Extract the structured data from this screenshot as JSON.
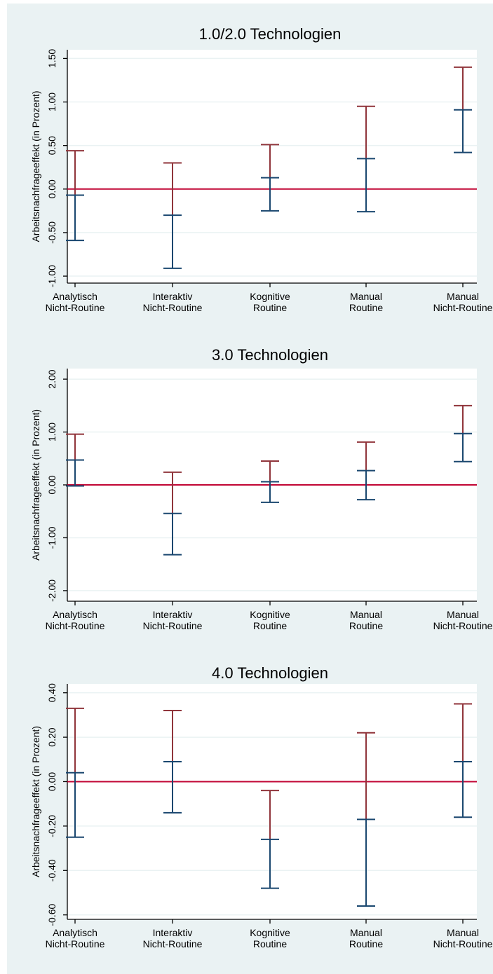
{
  "colors": {
    "background": "#eaf2f3",
    "plot_background": "#ffffff",
    "upper_bar": "#90353b",
    "lower_bar": "#1a476f",
    "reference_line": "#c10534",
    "grid": "#eaf2f3",
    "axis": "#000000"
  },
  "chart_data": [
    {
      "type": "errorbar",
      "title": "1.0/2.0 Technologien",
      "ylabel": "Arbeitsnachfrageeffekt (in Prozent)",
      "ylim": [
        -1.08,
        1.6
      ],
      "yticks": [
        1.5,
        1.0,
        0.5,
        0.0,
        -0.5,
        -1.0
      ],
      "ytick_labels": [
        "1.50",
        "1.00",
        "0.50",
        "0.00",
        "-0.50",
        "-1.00"
      ],
      "reference_line": 0,
      "categories": [
        [
          "Analytisch",
          "Nicht-Routine"
        ],
        [
          "Interaktiv",
          "Nicht-Routine"
        ],
        [
          "Kognitive",
          "Routine"
        ],
        [
          "Manual",
          "Routine"
        ],
        [
          "Manual",
          "Nicht-Routine"
        ]
      ],
      "points": [
        {
          "lower": -0.59,
          "estimate": -0.07,
          "upper": 0.44
        },
        {
          "lower": -0.91,
          "estimate": -0.3,
          "upper": 0.3
        },
        {
          "lower": -0.25,
          "estimate": 0.13,
          "upper": 0.51
        },
        {
          "lower": -0.26,
          "estimate": 0.35,
          "upper": 0.95
        },
        {
          "lower": 0.42,
          "estimate": 0.91,
          "upper": 1.4
        }
      ]
    },
    {
      "type": "errorbar",
      "title": "3.0 Technologien",
      "ylabel": "Arbeitsnachfrageeffekt (in Prozent)",
      "ylim": [
        -2.2,
        2.2
      ],
      "yticks": [
        2.0,
        1.0,
        0.0,
        -1.0,
        -2.0
      ],
      "ytick_labels": [
        "2.00",
        "1.00",
        "0.00",
        "-1.00",
        "-2.00"
      ],
      "reference_line": 0,
      "categories": [
        [
          "Analytisch",
          "Nicht-Routine"
        ],
        [
          "Interaktiv",
          "Nicht-Routine"
        ],
        [
          "Kognitive",
          "Routine"
        ],
        [
          "Manual",
          "Routine"
        ],
        [
          "Manual",
          "Nicht-Routine"
        ]
      ],
      "points": [
        {
          "lower": -0.02,
          "estimate": 0.47,
          "upper": 0.96
        },
        {
          "lower": -1.32,
          "estimate": -0.54,
          "upper": 0.24
        },
        {
          "lower": -0.33,
          "estimate": 0.06,
          "upper": 0.45
        },
        {
          "lower": -0.28,
          "estimate": 0.27,
          "upper": 0.81
        },
        {
          "lower": 0.44,
          "estimate": 0.97,
          "upper": 1.5
        }
      ]
    },
    {
      "type": "errorbar",
      "title": "4.0 Technologien",
      "ylabel": "Arbeitsnachfrageeffekt (in Prozent)",
      "ylim": [
        -0.62,
        0.44
      ],
      "yticks": [
        0.4,
        0.2,
        0.0,
        -0.2,
        -0.4,
        -0.6
      ],
      "ytick_labels": [
        "0.40",
        "0.20",
        "0.00",
        "-0.20",
        "-0.40",
        "-0.60"
      ],
      "reference_line": 0,
      "categories": [
        [
          "Analytisch",
          "Nicht-Routine"
        ],
        [
          "Interaktiv",
          "Nicht-Routine"
        ],
        [
          "Kognitive",
          "Routine"
        ],
        [
          "Manual",
          "Routine"
        ],
        [
          "Manual",
          "Nicht-Routine"
        ]
      ],
      "points": [
        {
          "lower": -0.25,
          "estimate": 0.04,
          "upper": 0.33
        },
        {
          "lower": -0.14,
          "estimate": 0.09,
          "upper": 0.32
        },
        {
          "lower": -0.48,
          "estimate": -0.26,
          "upper": -0.04
        },
        {
          "lower": -0.56,
          "estimate": -0.17,
          "upper": 0.22
        },
        {
          "lower": -0.16,
          "estimate": 0.09,
          "upper": 0.35
        }
      ]
    }
  ]
}
